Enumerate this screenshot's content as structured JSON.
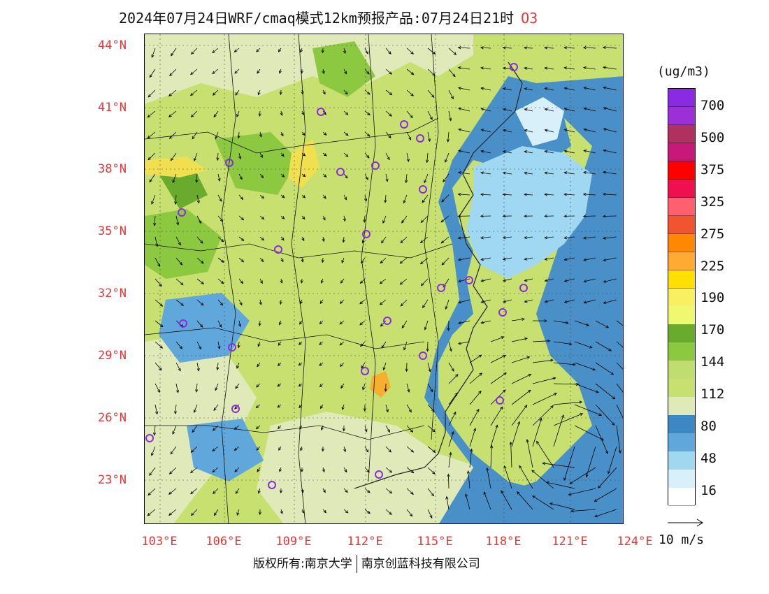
{
  "title": {
    "main": "2024年07月24日WRF/cmaq模式12km预报产品:07月24日21时",
    "variable": "O3"
  },
  "lat_labels": [
    "44°N",
    "41°N",
    "38°N",
    "35°N",
    "32°N",
    "29°N",
    "26°N",
    "23°N"
  ],
  "lon_labels": [
    "103°E",
    "106°E",
    "109°E",
    "112°E",
    "115°E",
    "118°E",
    "121°E",
    "124°E"
  ],
  "colorbar": {
    "unit": "(ug/m3)",
    "labels": [
      "700",
      "500",
      "375",
      "325",
      "275",
      "225",
      "190",
      "170",
      "144",
      "112",
      "80",
      "48",
      "16"
    ],
    "colors_top_to_bottom": [
      "#8a2be2",
      "#9b30d9",
      "#b0305f",
      "#c8187a",
      "#ff0000",
      "#f01050",
      "#ff6070",
      "#f05530",
      "#ff8800",
      "#ffaa30",
      "#ffe000",
      "#f8f060",
      "#f0f870",
      "#6aab2e",
      "#8cc840",
      "#c0de70",
      "#c8e070",
      "#dfeab8",
      "#3c88c4",
      "#60a8dc",
      "#a0d8f2",
      "#d8f0fa",
      "#ffffff"
    ],
    "colors_land": [
      "#dfeab8",
      "#c8e070",
      "#b8d868",
      "#8cc840",
      "#6aab2e",
      "#f0e050",
      "#f5b030"
    ],
    "color_sea": "#4a90c8"
  },
  "wind_reference": {
    "label": "10 m/s"
  },
  "copyright": {
    "left": "版权所有:南京大学",
    "right": "南京创蓝科技有限公司"
  },
  "monitoring_sites_color": "#8a2be2"
}
